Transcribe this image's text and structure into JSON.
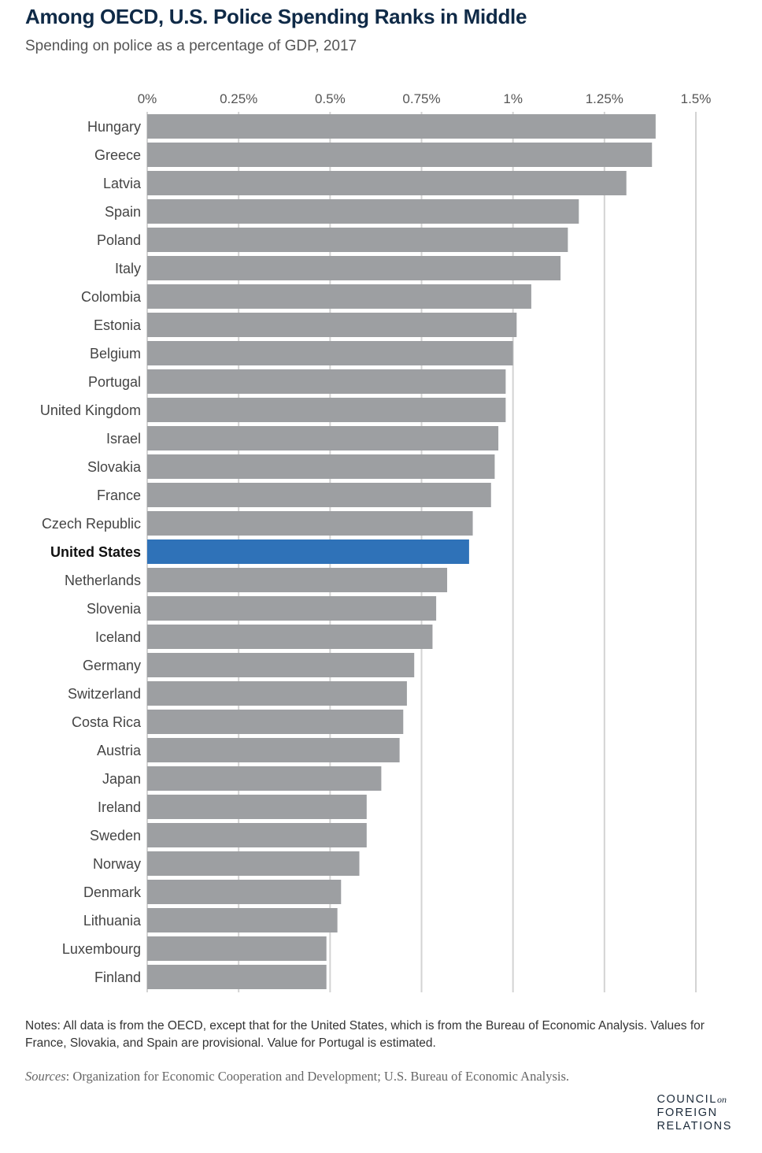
{
  "title": "Among OECD, U.S. Police Spending Ranks in Middle",
  "subtitle": "Spending on police as a percentage of GDP, 2017",
  "chart_data": {
    "type": "bar",
    "orientation": "horizontal",
    "xlim": [
      0,
      1.5
    ],
    "xticks": [
      0,
      0.25,
      0.5,
      0.75,
      1,
      1.25,
      1.5
    ],
    "xtick_labels": [
      "0%",
      "0.25%",
      "0.5%",
      "0.75%",
      "1%",
      "1.25%",
      "1.5%"
    ],
    "grid": true,
    "categories": [
      "Hungary",
      "Greece",
      "Latvia",
      "Spain",
      "Poland",
      "Italy",
      "Colombia",
      "Estonia",
      "Belgium",
      "Portugal",
      "United Kingdom",
      "Israel",
      "Slovakia",
      "France",
      "Czech Republic",
      "United States",
      "Netherlands",
      "Slovenia",
      "Iceland",
      "Germany",
      "Switzerland",
      "Costa Rica",
      "Austria",
      "Japan",
      "Ireland",
      "Sweden",
      "Norway",
      "Denmark",
      "Lithuania",
      "Luxembourg",
      "Finland"
    ],
    "values": [
      1.39,
      1.38,
      1.31,
      1.18,
      1.15,
      1.13,
      1.05,
      1.01,
      1.0,
      0.98,
      0.98,
      0.96,
      0.95,
      0.94,
      0.89,
      0.88,
      0.82,
      0.79,
      0.78,
      0.73,
      0.71,
      0.7,
      0.69,
      0.64,
      0.6,
      0.6,
      0.58,
      0.53,
      0.52,
      0.49,
      0.49
    ],
    "highlight": "United States",
    "colors": {
      "bar": "#9d9fa2",
      "highlight": "#2f72b8",
      "grid": "#d3d3d3"
    }
  },
  "notes": "Notes: All data is from the OECD, except that for the United States, which is from the Bureau of Economic Analysis. Values for France, Slovakia, and Spain are provisional. Value for Portugal is estimated.",
  "sources_label": "Sources",
  "sources_text": ": Organization for Economic Cooperation and Development; U.S. Bureau of Economic Analysis.",
  "logo": {
    "line1": "COUNCIL",
    "on": "on",
    "line2": "FOREIGN",
    "line3": "RELATIONS"
  }
}
